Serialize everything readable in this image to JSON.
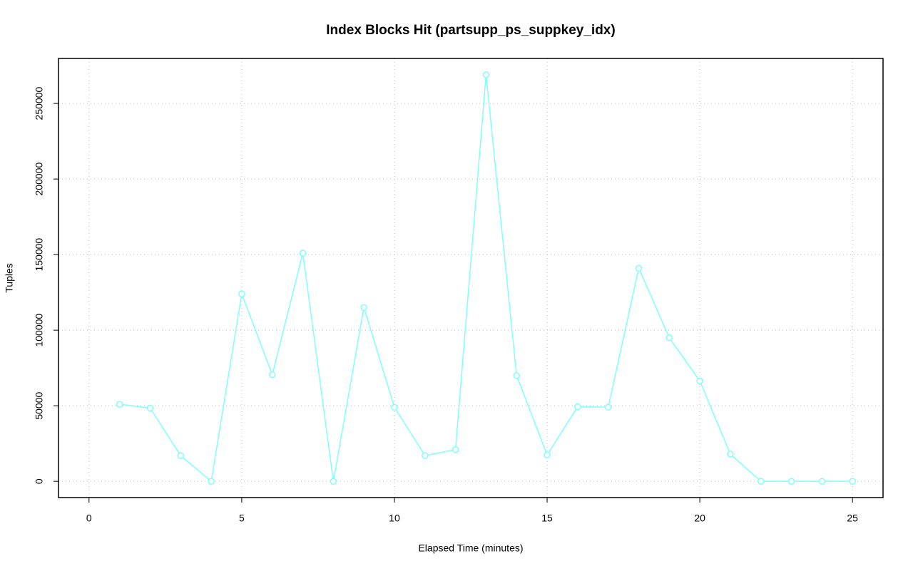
{
  "chart_data": {
    "type": "line",
    "title": "Index Blocks Hit (partsupp_ps_suppkey_idx)",
    "x_label": "Elapsed Time (minutes)",
    "y_label": "Tuples",
    "x": [
      1,
      2,
      3,
      4,
      5,
      6,
      7,
      8,
      9,
      10,
      11,
      12,
      13,
      14,
      15,
      16,
      17,
      18,
      19,
      20,
      21,
      22,
      23,
      24,
      25
    ],
    "series": [
      {
        "name": "partsupp_ps_suppkey_idx",
        "color": "#7fffff",
        "values": [
          51000,
          48500,
          17000,
          0,
          124000,
          70600,
          151000,
          0,
          115000,
          49000,
          17000,
          21000,
          269000,
          70000,
          17400,
          49400,
          49000,
          141000,
          95000,
          66400,
          18000,
          0,
          0,
          0,
          0
        ]
      }
    ],
    "xlim": [
      -1,
      26
    ],
    "ylim": [
      -10760,
      279760
    ],
    "xticks": [
      0,
      5,
      10,
      15,
      20,
      25
    ],
    "yticks": [
      0,
      50000,
      100000,
      150000,
      200000,
      250000
    ],
    "grid": true
  }
}
